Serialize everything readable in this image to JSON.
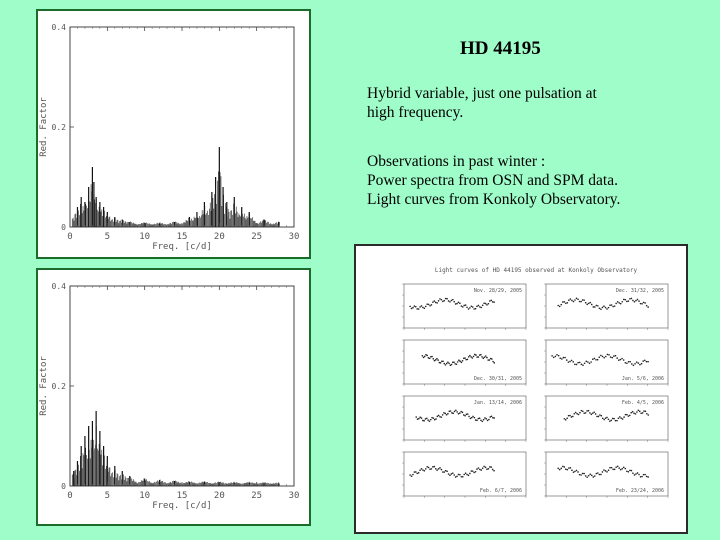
{
  "title": "HD 44195",
  "description": {
    "line1": "Hybrid variable, just one pulsation at",
    "line2": "high frequency.",
    "line3": "Observations in past winter :",
    "line4": "Power spectra from OSN and SPM data.",
    "line5": "Light curves from Konkoly Observatory."
  },
  "spectrum_top": {
    "ylabel": "Red. Factor",
    "xlabel": "Freq. [c/d]",
    "xticks": [
      "0",
      "5",
      "10",
      "15",
      "20",
      "25",
      "30"
    ],
    "yticks": [
      "0",
      "0.2",
      "0.4"
    ]
  },
  "spectrum_bottom": {
    "ylabel": "Red. Factor",
    "xlabel": "Freq. [c/d]",
    "xticks": [
      "0",
      "5",
      "10",
      "15",
      "20",
      "25",
      "30"
    ],
    "yticks": [
      "0",
      "0.2",
      "0.4"
    ]
  },
  "light_curves": {
    "title": "Light curves of HD 44195 observed at Konkoly Observatory",
    "panels": [
      {
        "label": "Nov. 28/29, 2005"
      },
      {
        "label": "Dec. 31/32, 2005"
      },
      {
        "label": "Dec. 30/31, 2005"
      },
      {
        "label": "Jan. 5/6, 2006"
      },
      {
        "label": "Jan. 13/14, 2006"
      },
      {
        "label": "Feb. 4/5, 2006"
      },
      {
        "label": "Feb. 6/7, 2006"
      },
      {
        "label": "Feb. 23/24, 2006"
      }
    ]
  },
  "chart_data": [
    {
      "type": "line",
      "title": "",
      "xlabel": "Freq. [c/d]",
      "ylabel": "Red. Factor",
      "xlim": [
        0,
        30
      ],
      "ylim": [
        0,
        0.4
      ],
      "series": [
        {
          "x": [
            1,
            1.5,
            2,
            2.5,
            3,
            3.2,
            3.5,
            4,
            4.5,
            5,
            6,
            7,
            8,
            10,
            12,
            14,
            16,
            17,
            18,
            19,
            19.5,
            20,
            20.5,
            21,
            22,
            23,
            24,
            26,
            28
          ],
          "values": [
            0.04,
            0.06,
            0.05,
            0.08,
            0.12,
            0.09,
            0.06,
            0.05,
            0.04,
            0.03,
            0.02,
            0.015,
            0.01,
            0.008,
            0.007,
            0.01,
            0.02,
            0.03,
            0.05,
            0.07,
            0.1,
            0.16,
            0.08,
            0.05,
            0.06,
            0.04,
            0.03,
            0.015,
            0.01
          ]
        }
      ]
    },
    {
      "type": "line",
      "title": "",
      "xlabel": "Freq. [c/d]",
      "ylabel": "Red. Factor",
      "xlim": [
        0,
        30
      ],
      "ylim": [
        0,
        0.4
      ],
      "series": [
        {
          "x": [
            0.5,
            1,
            1.5,
            2,
            2.5,
            3,
            3.5,
            4,
            4.5,
            5,
            6,
            7,
            8,
            10,
            12,
            14,
            16,
            18,
            20,
            22,
            24,
            26,
            28
          ],
          "values": [
            0.03,
            0.05,
            0.08,
            0.1,
            0.12,
            0.13,
            0.15,
            0.11,
            0.08,
            0.06,
            0.04,
            0.03,
            0.02,
            0.015,
            0.012,
            0.01,
            0.008,
            0.008,
            0.007,
            0.006,
            0.006,
            0.005,
            0.005
          ]
        }
      ]
    }
  ]
}
